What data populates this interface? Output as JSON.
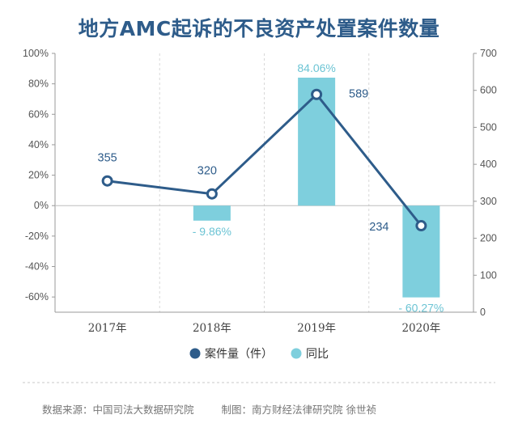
{
  "title": "地方AMC起诉的不良资产处置案件数量",
  "footer": {
    "source": "数据来源：中国司法大数据研究院",
    "credit": "制图：南方财经法律研究院 徐世祯"
  },
  "colors": {
    "title": "#2e5c8a",
    "line": "#2e5c8a",
    "bar": "#7ecfdd",
    "bar_label": "#6cc4d4",
    "axis_text": "#555555",
    "grid": "#d8d8d8",
    "legend_text": "#333333"
  },
  "chart_data": {
    "type": "bar+line",
    "categories": [
      "2017年",
      "2018年",
      "2019年",
      "2020年"
    ],
    "series": [
      {
        "name": "案件量（件）",
        "type": "line",
        "axis": "right",
        "values": [
          355,
          320,
          589,
          234
        ],
        "labels": [
          "355",
          "320",
          "589",
          "234"
        ]
      },
      {
        "name": "同比",
        "type": "bar",
        "axis": "left",
        "values": [
          null,
          -9.86,
          84.06,
          -60.27
        ],
        "labels": [
          "",
          "- 9.86%",
          "84.06%",
          "- 60.27%"
        ]
      }
    ],
    "y_left": {
      "ylim": [
        -70,
        100
      ],
      "ticks": [
        100,
        80,
        60,
        40,
        20,
        0,
        -20,
        -40,
        -60
      ],
      "tick_labels": [
        "100%",
        "80%",
        "60%",
        "40%",
        "20%",
        "0%",
        "-20%",
        "-40%",
        "-60%"
      ]
    },
    "y_right": {
      "ylim": [
        0,
        700
      ],
      "ticks": [
        700,
        600,
        500,
        400,
        300,
        200,
        100,
        0
      ],
      "tick_labels": [
        "700",
        "600",
        "500",
        "400",
        "300",
        "200",
        "100",
        "0"
      ]
    },
    "grid": "vertical-dashed",
    "legend": "bottom-center"
  }
}
